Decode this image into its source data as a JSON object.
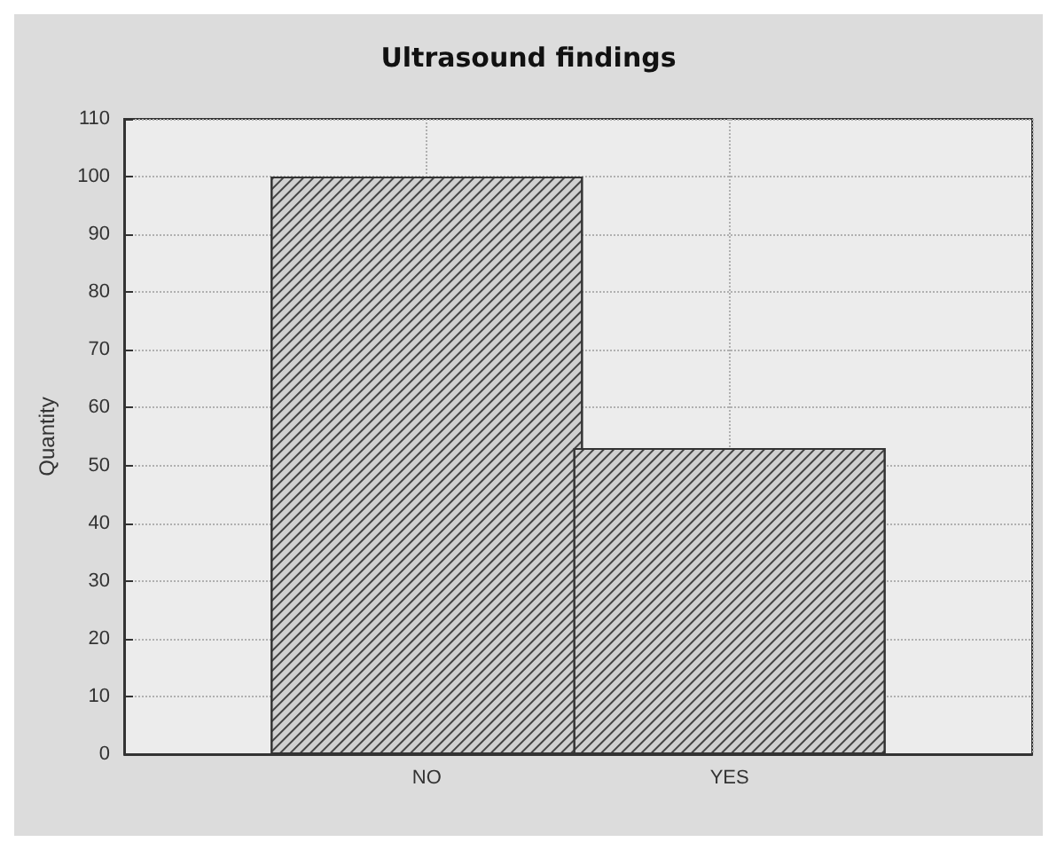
{
  "chart_data": {
    "type": "bar",
    "title": "Ultrasound findings",
    "ylabel": "Quantity",
    "categories": [
      "NO",
      "YES"
    ],
    "values": [
      100,
      53
    ],
    "color": "#d0d0d0",
    "ylim": [
      0,
      110
    ],
    "yticks": [
      0,
      10,
      20,
      30,
      40,
      50,
      60,
      70,
      80,
      90,
      100,
      110
    ],
    "grid": true
  }
}
